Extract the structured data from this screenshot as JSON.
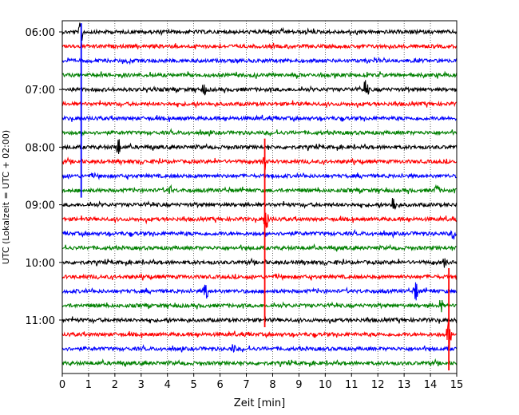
{
  "chart_data": {
    "type": "line",
    "title": "",
    "xlabel": "Zeit  [min]",
    "ylabel": "UTC (Lokalzeit = UTC + 02:00)",
    "xlim": [
      0,
      15
    ],
    "x_ticks": [
      "0",
      "1",
      "2",
      "3",
      "4",
      "5",
      "6",
      "7",
      "8",
      "9",
      "10",
      "11",
      "12",
      "13",
      "14",
      "15"
    ],
    "y_tick_labels": [
      "06:00",
      "07:00",
      "08:00",
      "09:00",
      "10:00",
      "11:00"
    ],
    "grid": "vertical dotted at each minute",
    "trace_colors": [
      "#000000",
      "#ff0000",
      "#0000ff",
      "#008000"
    ],
    "rows": [
      {
        "start": "06:00",
        "color": "#000000",
        "spikes": [
          {
            "x": 0.72,
            "amp": 1.1
          }
        ]
      },
      {
        "start": "06:15",
        "color": "#ff0000",
        "spikes": []
      },
      {
        "start": "06:30",
        "color": "#0000ff",
        "spikes": []
      },
      {
        "start": "06:45",
        "color": "#008000",
        "spikes": []
      },
      {
        "start": "07:00",
        "color": "#000000",
        "spikes": [
          {
            "x": 5.4,
            "amp": 0.4
          },
          {
            "x": 11.55,
            "amp": 1.1
          }
        ]
      },
      {
        "start": "07:15",
        "color": "#ff0000",
        "spikes": []
      },
      {
        "start": "07:30",
        "color": "#0000ff",
        "spikes": []
      },
      {
        "start": "07:45",
        "color": "#008000",
        "spikes": []
      },
      {
        "start": "08:00",
        "color": "#000000",
        "spikes": [
          {
            "x": 2.12,
            "amp": 0.8
          }
        ]
      },
      {
        "start": "08:15",
        "color": "#ff0000",
        "spikes": [
          {
            "x": 7.7,
            "amp": 0.6
          }
        ]
      },
      {
        "start": "08:30",
        "color": "#0000ff",
        "spikes": []
      },
      {
        "start": "08:45",
        "color": "#008000",
        "spikes": [
          {
            "x": 4.1,
            "amp": 0.35
          },
          {
            "x": 14.25,
            "amp": 0.45
          }
        ]
      },
      {
        "start": "09:00",
        "color": "#000000",
        "spikes": [
          {
            "x": 12.6,
            "amp": 0.8
          }
        ]
      },
      {
        "start": "09:15",
        "color": "#ff0000",
        "spikes": [
          {
            "x": 7.75,
            "amp": 1.3
          }
        ]
      },
      {
        "start": "09:30",
        "color": "#0000ff",
        "spikes": [
          {
            "x": 14.85,
            "amp": 0.35
          }
        ]
      },
      {
        "start": "09:45",
        "color": "#008000",
        "spikes": []
      },
      {
        "start": "10:00",
        "color": "#000000",
        "spikes": [
          {
            "x": 14.55,
            "amp": 0.35
          }
        ]
      },
      {
        "start": "10:15",
        "color": "#ff0000",
        "spikes": []
      },
      {
        "start": "10:30",
        "color": "#0000ff",
        "spikes": [
          {
            "x": 5.45,
            "amp": 1.0
          },
          {
            "x": 13.45,
            "amp": 0.75
          }
        ]
      },
      {
        "start": "10:45",
        "color": "#008000",
        "spikes": [
          {
            "x": 14.4,
            "amp": 0.5
          }
        ]
      },
      {
        "start": "11:00",
        "color": "#000000",
        "spikes": []
      },
      {
        "start": "11:15",
        "color": "#ff0000",
        "spikes": [
          {
            "x": 14.7,
            "amp": 1.2
          }
        ]
      },
      {
        "start": "11:30",
        "color": "#0000ff",
        "spikes": [
          {
            "x": 6.5,
            "amp": 0.35
          }
        ]
      },
      {
        "start": "11:45",
        "color": "#008000",
        "spikes": []
      }
    ],
    "long_events": [
      {
        "x": 0.72,
        "color": "#0000ff",
        "from": "06:00",
        "to": "08:45"
      },
      {
        "x": 7.7,
        "color": "#ff0000",
        "from": "08:00",
        "to": "11:00"
      },
      {
        "x": 14.7,
        "color": "#ff0000",
        "from": "10:15",
        "to": "11:45"
      }
    ]
  }
}
